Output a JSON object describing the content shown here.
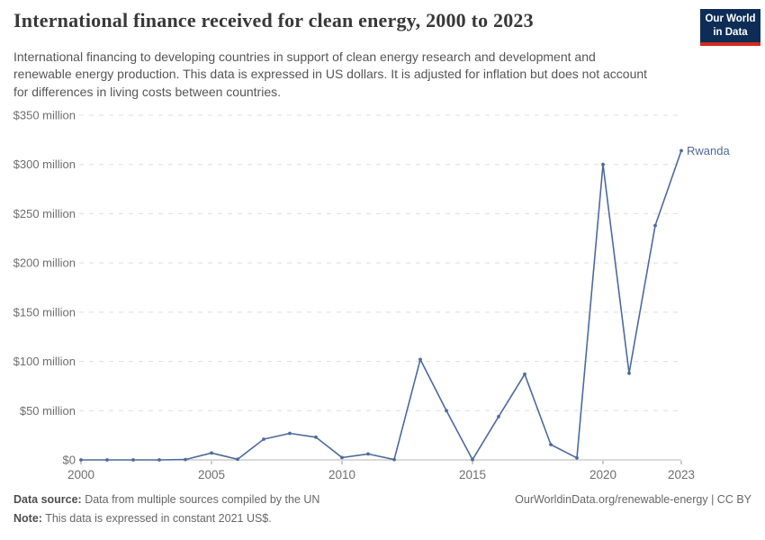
{
  "header": {
    "title": "International finance received for clean energy, 2000 to 2023",
    "subtitle": "International financing to developing countries in support of clean energy research and development and renewable energy production. This data is expressed in US dollars. It is adjusted for inflation but does not account for differences in living costs between countries.",
    "logo": {
      "line1": "Our World",
      "line2": "in Data",
      "bg": "#0d2d56",
      "accent": "#d42b21"
    }
  },
  "chart_data": {
    "type": "line",
    "title": "International finance received for clean energy, 2000 to 2023",
    "unit": "constant 2021 US$",
    "x": [
      2000,
      2001,
      2002,
      2003,
      2004,
      2005,
      2006,
      2007,
      2008,
      2009,
      2010,
      2011,
      2012,
      2013,
      2014,
      2015,
      2016,
      2017,
      2018,
      2019,
      2020,
      2021,
      2022,
      2023
    ],
    "series": [
      {
        "name": "Rwanda",
        "color": "#4c6a9c",
        "values": [
          0,
          0,
          0,
          0,
          0.4,
          7,
          0.6,
          21,
          27,
          23,
          2.4,
          6,
          0.4,
          102,
          50,
          0.3,
          44,
          87,
          15.5,
          2,
          300,
          88,
          238,
          314
        ]
      }
    ],
    "values_unit": "million US$",
    "ylim": [
      0,
      350
    ],
    "yticks": [
      {
        "value": 0,
        "label": "$0"
      },
      {
        "value": 50,
        "label": "$50 million"
      },
      {
        "value": 100,
        "label": "$100 million"
      },
      {
        "value": 150,
        "label": "$150 million"
      },
      {
        "value": 200,
        "label": "$200 million"
      },
      {
        "value": 250,
        "label": "$250 million"
      },
      {
        "value": 300,
        "label": "$300 million"
      },
      {
        "value": 350,
        "label": "$350 million"
      }
    ],
    "xticks": [
      2000,
      2005,
      2010,
      2015,
      2020,
      2023
    ],
    "grid": "horizontal-dashed",
    "legend_position": "end-of-line",
    "colors": {
      "grid": "#dddddd",
      "axis": "#b3b3b3",
      "tick": "#999999",
      "tick_label": "#6e6e6e"
    }
  },
  "footer": {
    "source_label": "Data source:",
    "source_text": " Data from multiple sources compiled by the UN",
    "note_label": "Note:",
    "note_text": " This data is expressed in constant 2021 US$.",
    "link": "OurWorldinData.org/renewable-energy | CC BY"
  }
}
